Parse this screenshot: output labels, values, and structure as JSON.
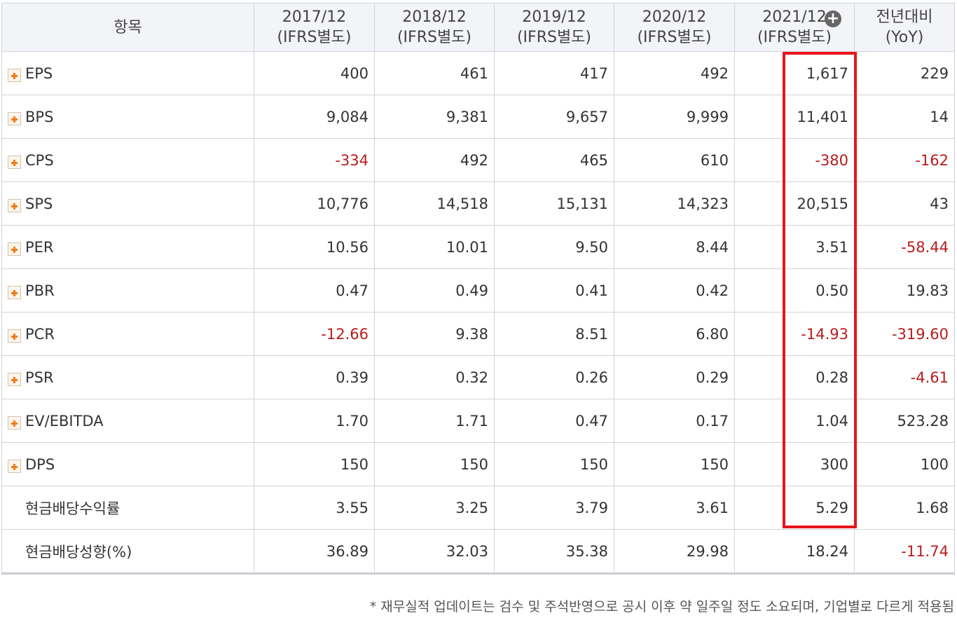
{
  "header": {
    "item": "항목",
    "columns": [
      {
        "period": "2017/12",
        "basis": "(IFRS별도)"
      },
      {
        "period": "2018/12",
        "basis": "(IFRS별도)"
      },
      {
        "period": "2019/12",
        "basis": "(IFRS별도)"
      },
      {
        "period": "2020/12",
        "basis": "(IFRS별도)"
      },
      {
        "period": "2021/12",
        "basis": "(IFRS별도)"
      },
      {
        "period": "전년대비",
        "basis": "(YoY)"
      }
    ],
    "expand_icon": "plus-circle-icon"
  },
  "rows": [
    {
      "label": "EPS",
      "expandable": true,
      "values": [
        "400",
        "461",
        "417",
        "492",
        "1,617",
        "229"
      ]
    },
    {
      "label": "BPS",
      "expandable": true,
      "values": [
        "9,084",
        "9,381",
        "9,657",
        "9,999",
        "11,401",
        "14"
      ]
    },
    {
      "label": "CPS",
      "expandable": true,
      "values": [
        "-334",
        "492",
        "465",
        "610",
        "-380",
        "-162"
      ]
    },
    {
      "label": "SPS",
      "expandable": true,
      "values": [
        "10,776",
        "14,518",
        "15,131",
        "14,323",
        "20,515",
        "43"
      ]
    },
    {
      "label": "PER",
      "expandable": true,
      "values": [
        "10.56",
        "10.01",
        "9.50",
        "8.44",
        "3.51",
        "-58.44"
      ]
    },
    {
      "label": "PBR",
      "expandable": true,
      "values": [
        "0.47",
        "0.49",
        "0.41",
        "0.42",
        "0.50",
        "19.83"
      ]
    },
    {
      "label": "PCR",
      "expandable": true,
      "values": [
        "-12.66",
        "9.38",
        "8.51",
        "6.80",
        "-14.93",
        "-319.60"
      ]
    },
    {
      "label": "PSR",
      "expandable": true,
      "values": [
        "0.39",
        "0.32",
        "0.26",
        "0.29",
        "0.28",
        "-4.61"
      ]
    },
    {
      "label": "EV/EBITDA",
      "expandable": true,
      "values": [
        "1.70",
        "1.71",
        "0.47",
        "0.17",
        "1.04",
        "523.28"
      ]
    },
    {
      "label": "DPS",
      "expandable": true,
      "values": [
        "150",
        "150",
        "150",
        "150",
        "300",
        "100"
      ]
    },
    {
      "label": "현금배당수익률",
      "expandable": false,
      "values": [
        "3.55",
        "3.25",
        "3.79",
        "3.61",
        "5.29",
        "1.68"
      ]
    },
    {
      "label": "현금배당성향(%)",
      "expandable": false,
      "values": [
        "36.89",
        "32.03",
        "35.38",
        "29.98",
        "18.24",
        "-11.74"
      ]
    }
  ],
  "colors": {
    "negative": "#b91c1c",
    "highlight": "#e8141e",
    "expand_plus": "#f07a1a"
  },
  "footnote": "* 재무실적 업데이트는 검수 및 주석반영으로 공시 이후 약 일주일 정도 소요되며, 기업별로 다르게 적용됨"
}
